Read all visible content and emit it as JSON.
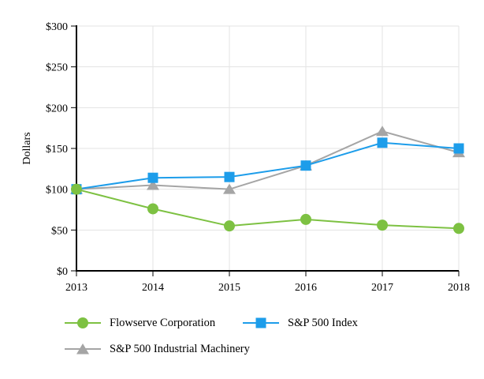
{
  "figure": {
    "background": "#ffffff"
  },
  "chart_data": {
    "type": "line",
    "title": "",
    "xlabel": "",
    "ylabel": "Dollars",
    "x": [
      "2013",
      "2014",
      "2015",
      "2016",
      "2017",
      "2018"
    ],
    "ylim": [
      0,
      300
    ],
    "yticks": [
      0,
      50,
      100,
      150,
      200,
      250,
      300
    ],
    "ytick_labels": [
      "$0",
      "$50",
      "$100",
      "$150",
      "$200",
      "$250",
      "$300"
    ],
    "grid": true,
    "grid_color": "#e3e3e3",
    "axis_color": "#000000",
    "legend_position": "bottom",
    "series": [
      {
        "name": "Flowserve Corporation",
        "marker": "circle",
        "color": "#7dc142",
        "values": [
          100,
          76,
          55,
          63,
          56,
          52
        ]
      },
      {
        "name": "S&P 500 Index",
        "marker": "square",
        "color": "#1d9dea",
        "values": [
          100,
          114,
          115,
          129,
          157,
          150
        ]
      },
      {
        "name": "S&P 500 Industrial Machinery",
        "marker": "triangle",
        "color": "#a5a5a5",
        "values": [
          100,
          105,
          100,
          129,
          171,
          145
        ]
      }
    ]
  }
}
